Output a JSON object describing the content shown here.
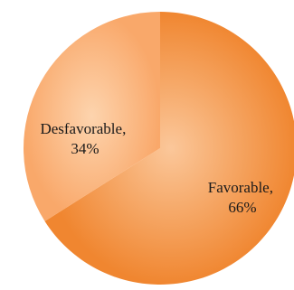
{
  "chart_data": {
    "type": "pie",
    "title": "",
    "start_angle_deg": 0,
    "direction": "clockwise",
    "slices": [
      {
        "label": "Favorable",
        "value": 66,
        "value_label": "66%",
        "color": "#f0852f",
        "color_light": "#f6a766"
      },
      {
        "label": "Desfavorable",
        "value": 34,
        "value_label": "34%",
        "color": "#f8a766",
        "color_light": "#fcc99b"
      }
    ],
    "data_labels": "category-and-percent",
    "legend": "none"
  }
}
